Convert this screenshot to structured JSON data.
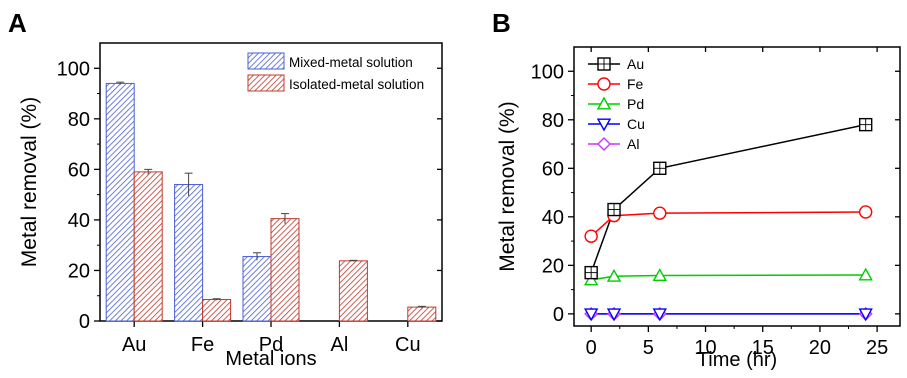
{
  "chart_data": [
    {
      "panel": "A",
      "type": "bar",
      "xlabel": "Metal ions",
      "ylabel": "Metal removal (%)",
      "ylim": [
        0,
        110
      ],
      "yticks": [
        0,
        20,
        40,
        60,
        80,
        100
      ],
      "categories": [
        "Au",
        "Fe",
        "Pd",
        "Al",
        "Cu"
      ],
      "legend_position": "top-right",
      "series": [
        {
          "name": "Mixed-metal solution",
          "color": "#4a5fd6",
          "fill": "hatched-blue",
          "values": [
            94,
            54,
            25.5,
            null,
            null
          ],
          "errors": [
            0.5,
            4.5,
            1.5,
            null,
            null
          ]
        },
        {
          "name": "Isolated-metal solution",
          "color": "#c0392b",
          "fill": "hatched-red",
          "values": [
            59,
            8.5,
            40.5,
            23.8,
            5.5
          ],
          "errors": [
            1,
            0.3,
            2,
            0.2,
            0.3
          ]
        }
      ]
    },
    {
      "panel": "B",
      "type": "line",
      "xlabel": "Time (hr)",
      "ylabel": "Metal removal (%)",
      "xlim": [
        -1.5,
        27
      ],
      "ylim": [
        -5,
        110
      ],
      "xticks": [
        0,
        5,
        10,
        15,
        20,
        25
      ],
      "yticks": [
        0,
        20,
        40,
        60,
        80,
        100
      ],
      "legend_position": "top-left",
      "series": [
        {
          "name": "Au",
          "color": "#000000",
          "marker": "square",
          "x": [
            0,
            2,
            6,
            24
          ],
          "y": [
            17,
            43,
            60,
            78
          ]
        },
        {
          "name": "Fe",
          "color": "#ff0000",
          "marker": "circle",
          "x": [
            0,
            2,
            6,
            24
          ],
          "y": [
            32,
            40.5,
            41.5,
            42
          ]
        },
        {
          "name": "Pd",
          "color": "#00cc00",
          "marker": "triangle-up",
          "x": [
            0,
            2,
            6,
            24
          ],
          "y": [
            14,
            15.5,
            15.8,
            16
          ]
        },
        {
          "name": "Cu",
          "color": "#0000ff",
          "marker": "triangle-down",
          "x": [
            0,
            2,
            6,
            24
          ],
          "y": [
            0,
            0,
            0,
            0
          ]
        },
        {
          "name": "Al",
          "color": "#cc33ff",
          "marker": "diamond",
          "x": [
            0,
            2,
            6,
            24
          ],
          "y": [
            0,
            0,
            0,
            0
          ]
        }
      ]
    }
  ],
  "panels": {
    "a_label": "A",
    "b_label": "B"
  }
}
